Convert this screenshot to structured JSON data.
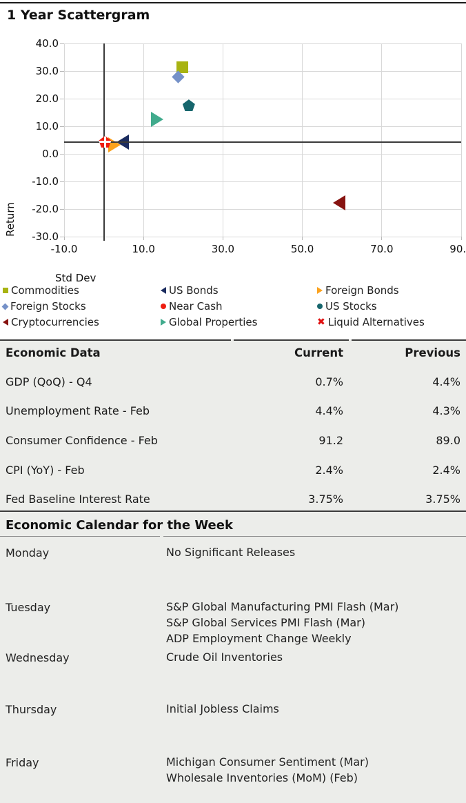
{
  "report": {
    "title": "1 Year Scattergram"
  },
  "chart_data": {
    "type": "scatter",
    "title": "1 Year Scattergram",
    "xlabel": "Std Dev",
    "ylabel": "Return",
    "xlim": [
      -10,
      90
    ],
    "ylim": [
      -30,
      40
    ],
    "x_ticks": [
      -10,
      10,
      30,
      50,
      70,
      90
    ],
    "y_ticks": [
      40,
      30,
      20,
      10,
      0,
      -10,
      -20,
      -30
    ],
    "grid": true,
    "crosshair": {
      "x": 0,
      "y": 4.3
    },
    "series": [
      {
        "name": "Commodities",
        "marker": "square",
        "color": "#A8B312",
        "x": 19.7,
        "y": 31.3
      },
      {
        "name": "Foreign Stocks",
        "marker": "diamond",
        "color": "#7591C8",
        "x": 18.7,
        "y": 28.0
      },
      {
        "name": "US Stocks",
        "marker": "pentagon",
        "color": "#17666D",
        "x": 21.4,
        "y": 17.6
      },
      {
        "name": "Global Properties",
        "marker": "triangle-right",
        "color": "#41AB8D",
        "x": 13.4,
        "y": 12.4
      },
      {
        "name": "US Bonds",
        "marker": "triangle-left",
        "color": "#1B2C5F",
        "x": 4.7,
        "y": 4.3
      },
      {
        "name": "Foreign Bonds",
        "marker": "triangle-right",
        "color": "#FBA21D",
        "x": 2.6,
        "y": 3.2
      },
      {
        "name": "Near Cash",
        "marker": "pentagon",
        "color": "#EE1D10",
        "x": 0.3,
        "y": 4.4,
        "layer": "top"
      },
      {
        "name": "Liquid Alternatives",
        "marker": "white-plus",
        "color": "#E8140C",
        "x": 0.3,
        "y": 4.3,
        "layer": "top"
      },
      {
        "name": "Cryptocurrencies",
        "marker": "triangle-left",
        "color": "#871310",
        "x": 59.3,
        "y": -17.8
      }
    ],
    "legend": {
      "position": "below",
      "rows": [
        [
          {
            "label": "Commodities",
            "marker": "square",
            "color": "#A8B312"
          },
          {
            "label": "US Bonds",
            "marker": "triangle-left",
            "color": "#1B2C5F"
          },
          {
            "label": "Foreign Bonds",
            "marker": "triangle-right",
            "color": "#FBA21D"
          }
        ],
        [
          {
            "label": "Foreign Stocks",
            "marker": "diamond",
            "color": "#7591C8"
          },
          {
            "label": "Near Cash",
            "marker": "dot",
            "color": "#EE1D10"
          },
          {
            "label": "US Stocks",
            "marker": "dot",
            "color": "#17666D"
          }
        ],
        [
          {
            "label": "Cryptocurrencies",
            "marker": "triangle-left",
            "color": "#871310"
          },
          {
            "label": "Global Properties",
            "marker": "triangle-right",
            "color": "#41AB8D"
          },
          {
            "label": "Liquid Alternatives",
            "marker": "x-cross",
            "color": "#E01010"
          }
        ]
      ]
    }
  },
  "econ_table": {
    "header": {
      "name": "Economic Data",
      "current": "Current",
      "previous": "Previous"
    },
    "rows": [
      {
        "name": "GDP (QoQ) - Q4",
        "current": "0.7%",
        "previous": "4.4%"
      },
      {
        "name": "Unemployment Rate - Feb",
        "current": "4.4%",
        "previous": "4.3%"
      },
      {
        "name": "Consumer Confidence - Feb",
        "current": "91.2",
        "previous": "89.0"
      },
      {
        "name": "CPI (YoY) - Feb",
        "current": "2.4%",
        "previous": "2.4%"
      },
      {
        "name": "Fed Baseline Interest Rate",
        "current": "3.75%",
        "previous": "3.75%"
      }
    ]
  },
  "calendar": {
    "title": "Economic Calendar for the Week",
    "rows": [
      {
        "day": "Monday",
        "events": [
          "No Significant Releases"
        ]
      },
      {
        "day": "Tuesday",
        "events": [
          "S&P Global Manufacturing PMI Flash (Mar)",
          "S&P Global Services PMI Flash (Mar)",
          "ADP Employment Change Weekly"
        ]
      },
      {
        "day": "Wednesday",
        "events": [
          "Crude Oil Inventories"
        ]
      },
      {
        "day": "Thursday",
        "events": [
          "Initial Jobless Claims"
        ]
      },
      {
        "day": "Friday",
        "events": [
          "Michigan Consumer Sentiment (Mar)",
          "Wholesale Inventories (MoM) (Feb)"
        ]
      }
    ]
  },
  "colors": {
    "panel_bg": "#ECEDEA",
    "grid": "#d8d8d8",
    "crosshair": "#3a3a3a",
    "rule": "#1a1a1a"
  }
}
